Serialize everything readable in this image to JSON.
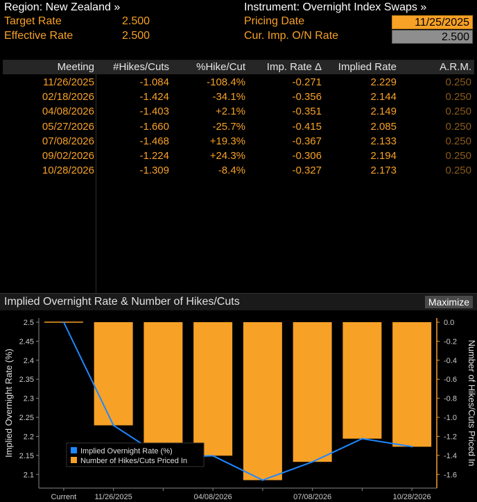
{
  "header": {
    "region": "Region: New Zealand »",
    "instrument": "Instrument: Overnight Index Swaps »",
    "target_rate_label": "Target Rate",
    "target_rate_value": "2.500",
    "effective_rate_label": "Effective Rate",
    "effective_rate_value": "2.500",
    "pricing_date_label": "Pricing Date",
    "pricing_date_value": "11/25/2025",
    "cur_imp_label": "Cur. Imp. O/N Rate",
    "cur_imp_value": "2.500"
  },
  "table": {
    "columns": [
      "Meeting",
      "#Hikes/Cuts",
      "%Hike/Cut",
      "Imp. Rate Δ",
      "Implied Rate",
      "A.R.M."
    ],
    "rows": [
      [
        "11/26/2025",
        "-1.084",
        "-108.4%",
        "-0.271",
        "2.229",
        "0.250"
      ],
      [
        "02/18/2026",
        "-1.424",
        "-34.1%",
        "-0.356",
        "2.144",
        "0.250"
      ],
      [
        "04/08/2026",
        "-1.403",
        "+2.1%",
        "-0.351",
        "2.149",
        "0.250"
      ],
      [
        "05/27/2026",
        "-1.660",
        "-25.7%",
        "-0.415",
        "2.085",
        "0.250"
      ],
      [
        "07/08/2026",
        "-1.468",
        "+19.3%",
        "-0.367",
        "2.133",
        "0.250"
      ],
      [
        "09/02/2026",
        "-1.224",
        "+24.3%",
        "-0.306",
        "2.194",
        "0.250"
      ],
      [
        "10/28/2026",
        "-1.309",
        "-8.4%",
        "-0.327",
        "2.173",
        "0.250"
      ]
    ]
  },
  "chart_panel": {
    "title": "Implied Overnight Rate & Number of Hikes/Cuts",
    "maximize_label": "Maximize"
  },
  "colors": {
    "line": "#1e88ff",
    "bar": "#f7a127",
    "axis_right": "#f7a127",
    "text": "#cccccc"
  },
  "chart_data": {
    "type": "bar",
    "categories": [
      "Current",
      "11/26/2025",
      "02/18/2026",
      "04/08/2026",
      "05/27/2026",
      "07/08/2026",
      "09/02/2026",
      "10/28/2026"
    ],
    "x_tick_labels": [
      "Current",
      "11/26/2025",
      "",
      "04/08/2026",
      "",
      "07/08/2026",
      "",
      "10/28/2026"
    ],
    "series": [
      {
        "name": "Implied Overnight Rate (%)",
        "type": "line",
        "axis": "left",
        "values": [
          2.5,
          2.229,
          2.144,
          2.149,
          2.085,
          2.133,
          2.194,
          2.173
        ]
      },
      {
        "name": "Number of Hikes/Cuts Priced In",
        "type": "bar",
        "axis": "right",
        "values": [
          0,
          -1.084,
          -1.424,
          -1.403,
          -1.66,
          -1.468,
          -1.224,
          -1.309
        ]
      }
    ],
    "ylabel_left": "Implied Overnight Rate (%)",
    "ylabel_right": "Number of Hikes/Cuts Priced In",
    "ylim_left": [
      2.075,
      2.5
    ],
    "ylim_right": [
      -1.7,
      0
    ],
    "yticks_left": [
      "2.5",
      "2.45",
      "2.4",
      "2.35",
      "2.3",
      "2.25",
      "2.2",
      "2.15",
      "2.1"
    ],
    "yticks_right": [
      "0.0",
      "-0.2",
      "-0.4",
      "-0.6",
      "-0.8",
      "-1.0",
      "-1.2",
      "-1.4",
      "-1.6"
    ],
    "legend_position": "bottom-left",
    "grid": false
  }
}
